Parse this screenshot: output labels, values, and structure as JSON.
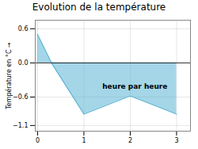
{
  "chart_data": {
    "type": "area",
    "title": "Evolution de la température",
    "y_label": "Température en °C",
    "x": [
      0,
      0.3,
      1.0,
      2.0,
      3.0
    ],
    "values": [
      0.5,
      0.0,
      -0.9,
      -0.58,
      -0.9
    ],
    "color": "#5ab4d4",
    "xlim": [
      -0.05,
      3.3
    ],
    "ylim": [
      -1.2,
      0.75
    ],
    "xticks": [
      0,
      1,
      2,
      3
    ],
    "yticks": [
      -1.1,
      -0.6,
      {
        "value": 0.0,
        "label": "0.0"
      },
      0.6
    ],
    "grid": true,
    "annotations": [
      {
        "text": "heure par heure",
        "x": 2.1,
        "y": -0.42
      }
    ]
  }
}
